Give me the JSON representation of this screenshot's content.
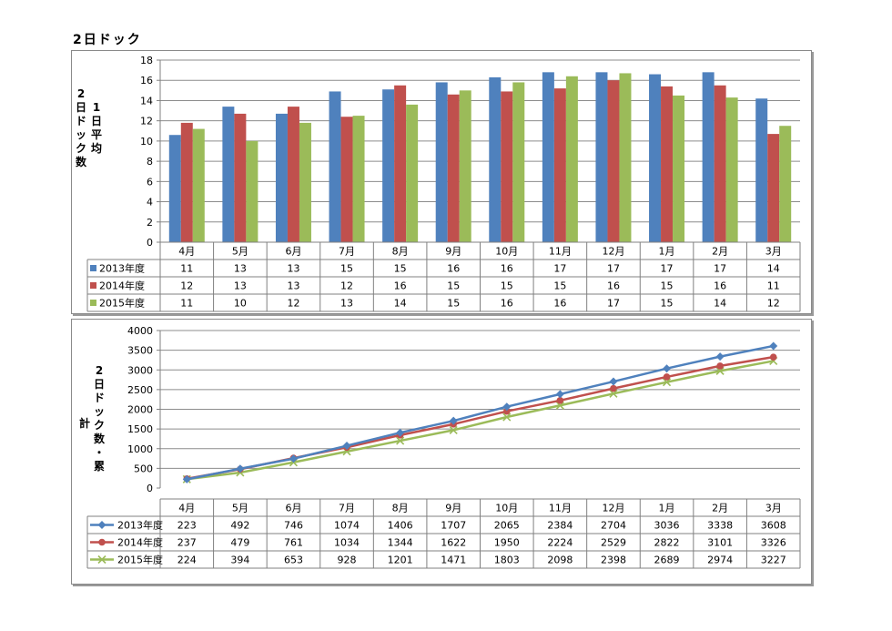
{
  "page_title": "2日ドック",
  "chart_data": [
    {
      "type": "bar",
      "ylabel_lines": [
        "2日ドック数",
        "1日平均"
      ],
      "ylim": [
        0,
        18
      ],
      "yticks": [
        0,
        2,
        4,
        6,
        8,
        10,
        12,
        14,
        16,
        18
      ],
      "grid": true,
      "legend": "table-below",
      "categories": [
        "4月",
        "5月",
        "6月",
        "7月",
        "8月",
        "9月",
        "10月",
        "11月",
        "12月",
        "1月",
        "2月",
        "3月"
      ],
      "series": [
        {
          "name": "2013年度",
          "color": "#4f81bd",
          "values": [
            10.6,
            13.4,
            12.7,
            14.9,
            15.1,
            15.8,
            16.3,
            16.8,
            16.8,
            16.6,
            16.8,
            14.2
          ],
          "table": [
            11,
            13,
            13,
            15,
            15,
            16,
            16,
            17,
            17,
            17,
            17,
            14
          ]
        },
        {
          "name": "2014年度",
          "color": "#c0504d",
          "values": [
            11.8,
            12.7,
            13.4,
            12.4,
            15.5,
            14.6,
            14.9,
            15.2,
            16.0,
            15.4,
            15.5,
            10.7
          ],
          "table": [
            12,
            13,
            13,
            12,
            16,
            15,
            15,
            15,
            16,
            15,
            16,
            11
          ]
        },
        {
          "name": "2015年度",
          "color": "#9bbb59",
          "values": [
            11.2,
            10.0,
            11.8,
            12.5,
            13.6,
            15.0,
            15.8,
            16.4,
            16.7,
            14.5,
            14.3,
            11.5
          ],
          "table": [
            11,
            10,
            12,
            13,
            14,
            15,
            16,
            16,
            17,
            15,
            14,
            12
          ]
        }
      ]
    },
    {
      "type": "line",
      "ylabel_lines": [
        "2日ドック数・累",
        "計"
      ],
      "ylim": [
        0,
        4000
      ],
      "yticks": [
        0,
        500,
        1000,
        1500,
        2000,
        2500,
        3000,
        3500,
        4000
      ],
      "grid": true,
      "legend": "table-below",
      "categories": [
        "4月",
        "5月",
        "6月",
        "7月",
        "8月",
        "9月",
        "10月",
        "11月",
        "12月",
        "1月",
        "2月",
        "3月"
      ],
      "series": [
        {
          "name": "2013年度",
          "color": "#4f81bd",
          "marker": "diamond",
          "values": [
            223,
            492,
            746,
            1074,
            1406,
            1707,
            2065,
            2384,
            2704,
            3036,
            3338,
            3608
          ]
        },
        {
          "name": "2014年度",
          "color": "#c0504d",
          "marker": "circle",
          "values": [
            237,
            479,
            761,
            1034,
            1344,
            1622,
            1950,
            2224,
            2529,
            2822,
            3101,
            3326
          ]
        },
        {
          "name": "2015年度",
          "color": "#9bbb59",
          "marker": "x",
          "values": [
            224,
            394,
            653,
            928,
            1201,
            1471,
            1803,
            2098,
            2398,
            2689,
            2974,
            3227
          ]
        }
      ]
    }
  ]
}
